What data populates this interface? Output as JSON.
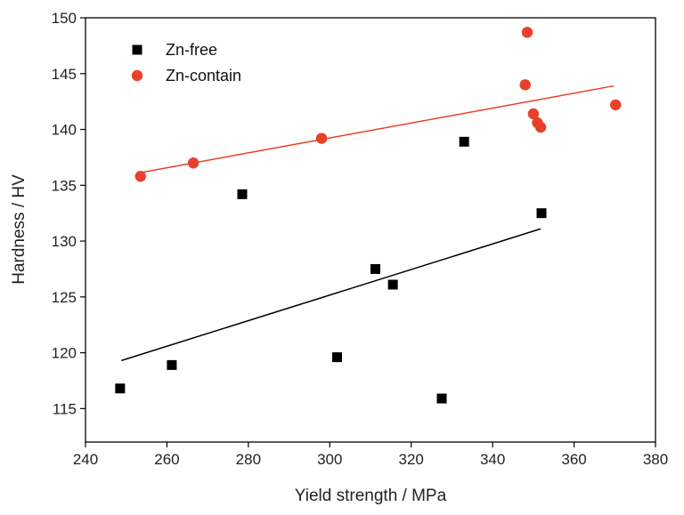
{
  "chart_data": {
    "type": "scatter",
    "title": "",
    "xlabel": "Yield strength / MPa",
    "ylabel": "Hardness / HV",
    "xlim": [
      240,
      380
    ],
    "ylim": [
      112,
      150
    ],
    "xticks": [
      240,
      260,
      280,
      300,
      320,
      340,
      360,
      380
    ],
    "yticks": [
      115,
      120,
      125,
      130,
      135,
      140,
      145,
      150
    ],
    "grid": false,
    "legend_position": "top-left",
    "series": [
      {
        "name": "Zn-free",
        "marker": "square",
        "color": "#000000",
        "points": [
          {
            "x": 248.5,
            "y": 116.8
          },
          {
            "x": 261.2,
            "y": 118.9
          },
          {
            "x": 278.5,
            "y": 134.2
          },
          {
            "x": 301.8,
            "y": 119.6
          },
          {
            "x": 311.2,
            "y": 127.5
          },
          {
            "x": 315.5,
            "y": 126.1
          },
          {
            "x": 327.5,
            "y": 115.9
          },
          {
            "x": 333.0,
            "y": 138.9
          },
          {
            "x": 352.0,
            "y": 132.5
          }
        ],
        "fit": {
          "x": [
            248.8,
            351.8
          ],
          "y": [
            119.3,
            131.1
          ]
        }
      },
      {
        "name": "Zn-contain",
        "marker": "circle",
        "color": "#e8412a",
        "points": [
          {
            "x": 253.5,
            "y": 135.8
          },
          {
            "x": 266.5,
            "y": 137.0
          },
          {
            "x": 298.0,
            "y": 139.2
          },
          {
            "x": 348.0,
            "y": 144.0
          },
          {
            "x": 348.5,
            "y": 148.7
          },
          {
            "x": 350.0,
            "y": 141.4
          },
          {
            "x": 351.0,
            "y": 140.6
          },
          {
            "x": 351.8,
            "y": 140.2
          },
          {
            "x": 370.2,
            "y": 142.2
          }
        ],
        "fit": {
          "x": [
            253.0,
            369.8
          ],
          "y": [
            136.1,
            143.9
          ]
        }
      }
    ]
  }
}
